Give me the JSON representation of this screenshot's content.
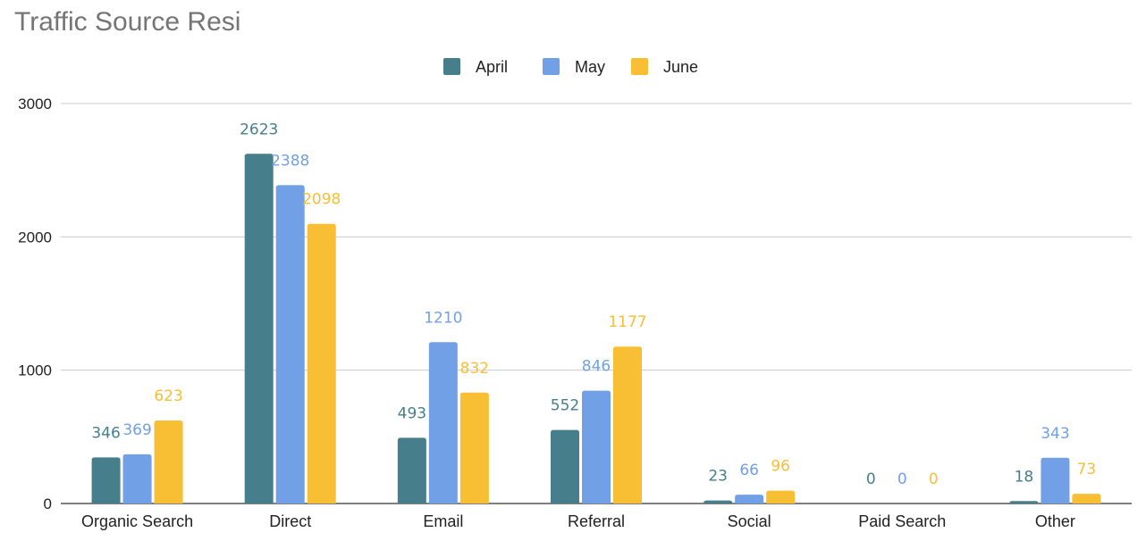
{
  "chart_data": {
    "type": "bar",
    "title": "Traffic Source Resi",
    "categories": [
      "Organic Search",
      "Direct",
      "Email",
      "Referral",
      "Social",
      "Paid Search",
      "Other"
    ],
    "series": [
      {
        "name": "April",
        "color": "#467f8b",
        "values": [
          346,
          2623,
          493,
          552,
          23,
          0,
          18
        ]
      },
      {
        "name": "May",
        "color": "#72a0e6",
        "values": [
          369,
          2388,
          1210,
          846,
          66,
          0,
          343
        ]
      },
      {
        "name": "June",
        "color": "#f8be34",
        "values": [
          623,
          2098,
          832,
          1177,
          96,
          0,
          73
        ]
      }
    ],
    "ylim": [
      0,
      3000
    ],
    "yticks": [
      0,
      1000,
      2000,
      3000
    ],
    "xlabel": "",
    "ylabel": "",
    "grid": true,
    "legend_position": "top-center",
    "data_labels": true
  }
}
